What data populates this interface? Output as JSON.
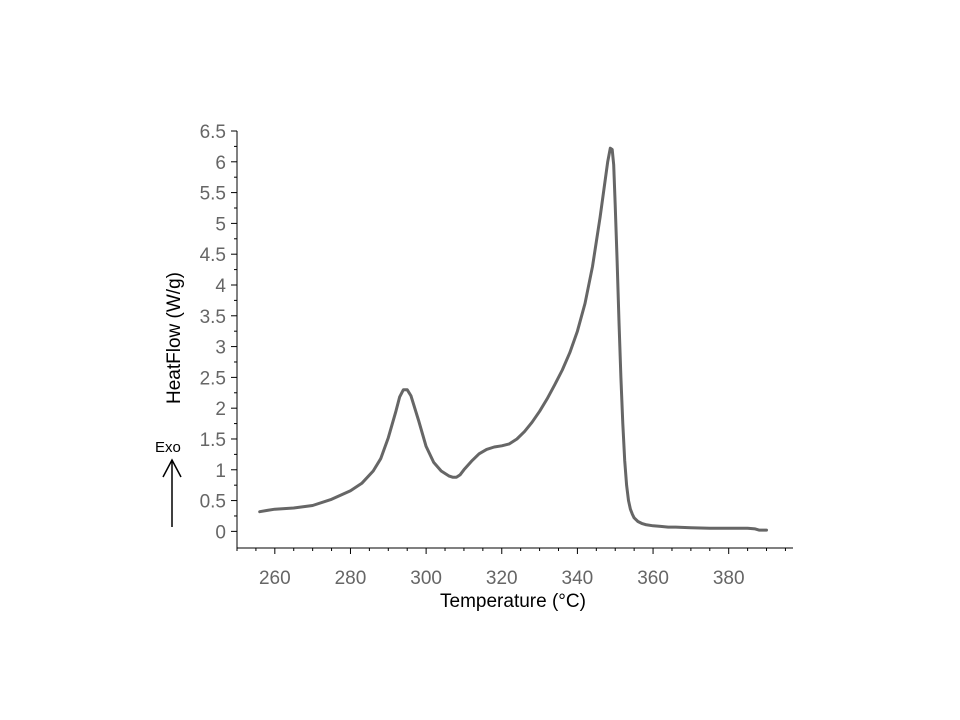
{
  "chart_data": {
    "type": "line",
    "title": "",
    "xlabel": "Temperature (°C)",
    "ylabel": "HeatFlow (W/g)",
    "exo_label": "Exo",
    "xlim": [
      250,
      397
    ],
    "ylim": [
      -0.27,
      6.5
    ],
    "x_ticks": [
      260,
      280,
      300,
      320,
      340,
      360,
      380
    ],
    "x_tick_labels": [
      "260",
      "280",
      "300",
      "320",
      "340",
      "360",
      "380"
    ],
    "y_ticks": [
      0,
      0.5,
      1,
      1.5,
      2,
      2.5,
      3,
      3.5,
      4,
      4.5,
      5,
      5.5,
      6,
      6.5
    ],
    "y_tick_labels": [
      "0",
      "0.5",
      "1",
      "1.5",
      "2",
      "2.5",
      "3",
      "3.5",
      "4",
      "4.5",
      "5",
      "5.5",
      "6",
      "6.5"
    ],
    "grid": false,
    "line_color": "#666666",
    "series": [
      {
        "x": [
          256,
          258,
          260,
          265,
          270,
          275,
          280,
          283,
          286,
          288,
          290,
          292,
          293,
          294,
          295,
          296,
          298,
          300,
          302,
          304,
          306,
          307,
          308,
          309,
          310,
          312,
          314,
          316,
          318,
          320,
          322,
          324,
          326,
          328,
          330,
          332,
          334,
          336,
          338,
          340,
          342,
          344,
          345,
          346,
          347,
          348,
          348.7,
          349.2,
          349.6,
          350,
          350.5,
          351,
          351.5,
          352,
          352.5,
          353,
          353.5,
          354,
          354.5,
          355,
          356,
          357,
          358,
          360,
          362,
          364,
          366,
          370,
          375,
          380,
          385,
          387,
          388,
          390
        ],
        "y": [
          0.32,
          0.34,
          0.36,
          0.38,
          0.42,
          0.52,
          0.66,
          0.78,
          0.98,
          1.18,
          1.52,
          1.95,
          2.18,
          2.3,
          2.3,
          2.2,
          1.8,
          1.38,
          1.12,
          0.98,
          0.9,
          0.88,
          0.88,
          0.92,
          1.0,
          1.14,
          1.26,
          1.33,
          1.37,
          1.39,
          1.42,
          1.5,
          1.62,
          1.77,
          1.95,
          2.15,
          2.38,
          2.62,
          2.9,
          3.25,
          3.7,
          4.3,
          4.7,
          5.1,
          5.55,
          6.0,
          6.22,
          6.2,
          5.95,
          5.3,
          4.4,
          3.4,
          2.5,
          1.75,
          1.15,
          0.75,
          0.5,
          0.36,
          0.28,
          0.22,
          0.16,
          0.13,
          0.11,
          0.09,
          0.08,
          0.07,
          0.07,
          0.06,
          0.05,
          0.05,
          0.05,
          0.04,
          0.02,
          0.02
        ]
      }
    ]
  }
}
